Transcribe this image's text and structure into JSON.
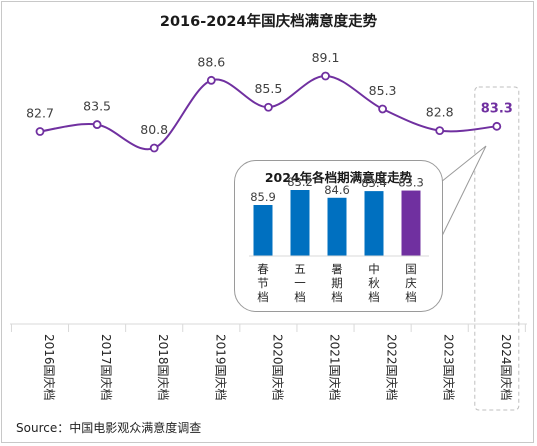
{
  "title": "2016-2024年国庆档满意度走势",
  "source": "Source：中国电影观众满意度调查",
  "colors": {
    "line": "#7030a0",
    "highlight": "#7030a0",
    "bar": "#0070c0",
    "grid": "#d9d9d9",
    "label": "#404040"
  },
  "chart_data": [
    {
      "type": "line",
      "title": "2016-2024年国庆档满意度走势",
      "categories": [
        "2016国庆档",
        "2017国庆档",
        "2018国庆档",
        "2019国庆档",
        "2020国庆档",
        "2021国庆档",
        "2022国庆档",
        "2023国庆档",
        "2024国庆档"
      ],
      "values": [
        82.7,
        83.5,
        80.8,
        88.6,
        85.5,
        89.1,
        85.3,
        82.8,
        83.3
      ],
      "value_labels": [
        "82.7",
        "83.5",
        "80.8",
        "88.6",
        "85.5",
        "89.1",
        "85.3",
        "82.8",
        "83.3"
      ],
      "highlight_index": 8,
      "xlabel": "",
      "ylabel": "",
      "smooth": true,
      "grid": true,
      "legend": "none"
    },
    {
      "type": "bar",
      "title": "2024年各档期满意度走势",
      "categories": [
        "春节档",
        "五一档",
        "暑期档",
        "中秋档",
        "国庆档"
      ],
      "values": [
        85.9,
        83.2,
        84.6,
        83.4,
        83.3
      ],
      "value_labels": [
        "85.9",
        "83.2",
        "84.6",
        "83.4",
        "83.3"
      ],
      "highlight_index": 4,
      "xlabel": "",
      "ylabel": "",
      "legend": "none"
    }
  ]
}
